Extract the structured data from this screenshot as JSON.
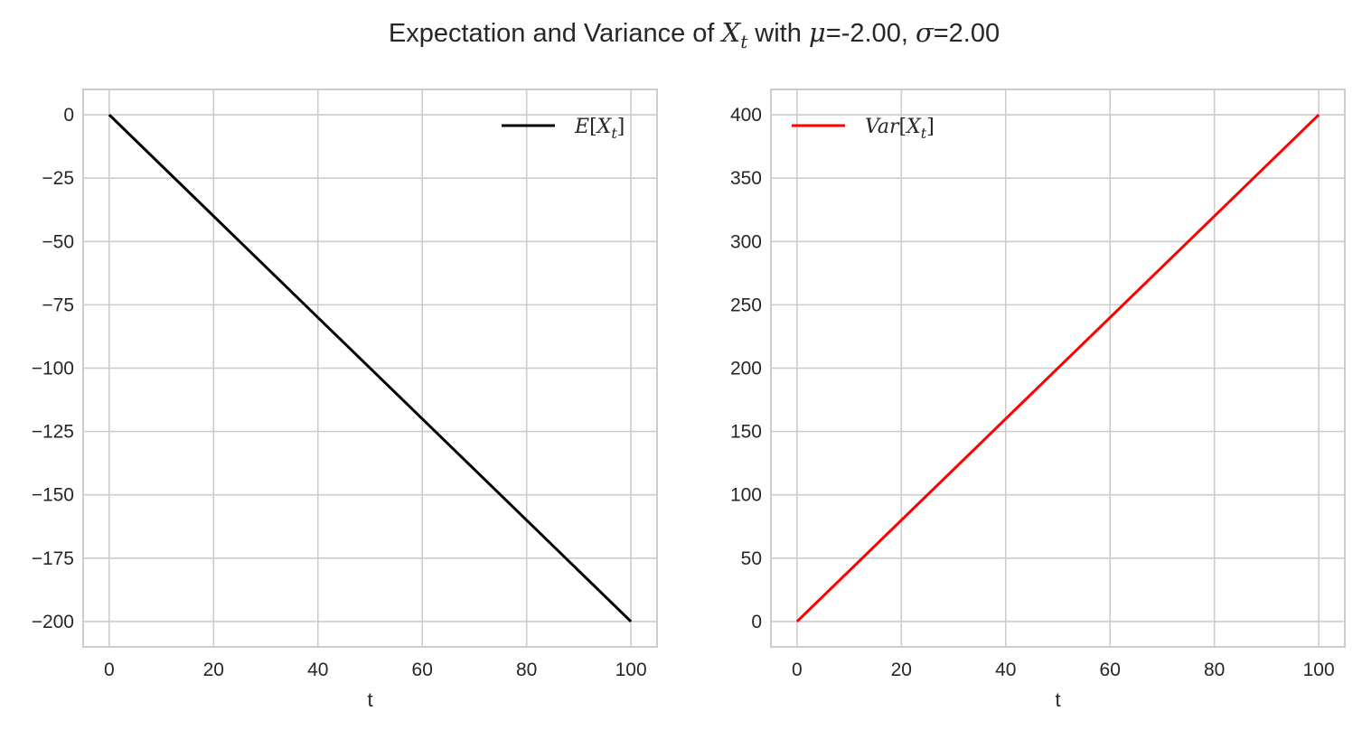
{
  "figure": {
    "title_prefix": "Expectation and Variance of ",
    "title_var": "X",
    "title_sub": "t",
    "title_mid1": " with ",
    "title_mu": "μ",
    "title_mu_val": "=-2.00, ",
    "title_sigma": "σ",
    "title_sigma_val": "=2.00"
  },
  "chart_data": [
    {
      "type": "line",
      "title": "",
      "xlabel": "t",
      "ylabel": "",
      "xlim": [
        -5,
        105
      ],
      "ylim": [
        -210,
        10
      ],
      "xticks": [
        0,
        20,
        40,
        60,
        80,
        100
      ],
      "xtick_labels": [
        "0",
        "20",
        "40",
        "60",
        "80",
        "100"
      ],
      "yticks": [
        0,
        -25,
        -50,
        -75,
        -100,
        -125,
        -150,
        -175,
        -200
      ],
      "ytick_labels": [
        "0",
        "−25",
        "−50",
        "−75",
        "−100",
        "−125",
        "−150",
        "−175",
        "−200"
      ],
      "grid": true,
      "legend_position": "top-right",
      "series": [
        {
          "name": "E[X_t]",
          "legend_pre": "E",
          "legend_bracket_open": "[",
          "legend_var": "X",
          "legend_sub": "t",
          "legend_bracket_close": "]",
          "color": "#000000",
          "x": [
            0,
            100
          ],
          "y": [
            0,
            -200
          ]
        }
      ]
    },
    {
      "type": "line",
      "title": "",
      "xlabel": "t",
      "ylabel": "",
      "xlim": [
        -5,
        105
      ],
      "ylim": [
        -20,
        420
      ],
      "xticks": [
        0,
        20,
        40,
        60,
        80,
        100
      ],
      "xtick_labels": [
        "0",
        "20",
        "40",
        "60",
        "80",
        "100"
      ],
      "yticks": [
        0,
        50,
        100,
        150,
        200,
        250,
        300,
        350,
        400
      ],
      "ytick_labels": [
        "0",
        "50",
        "100",
        "150",
        "200",
        "250",
        "300",
        "350",
        "400"
      ],
      "grid": true,
      "legend_position": "top-left",
      "series": [
        {
          "name": "Var[X_t]",
          "legend_pre": "Var",
          "legend_bracket_open": "[",
          "legend_var": "X",
          "legend_sub": "t",
          "legend_bracket_close": "]",
          "color": "#ff0000",
          "x": [
            0,
            100
          ],
          "y": [
            0,
            400
          ]
        }
      ]
    }
  ]
}
